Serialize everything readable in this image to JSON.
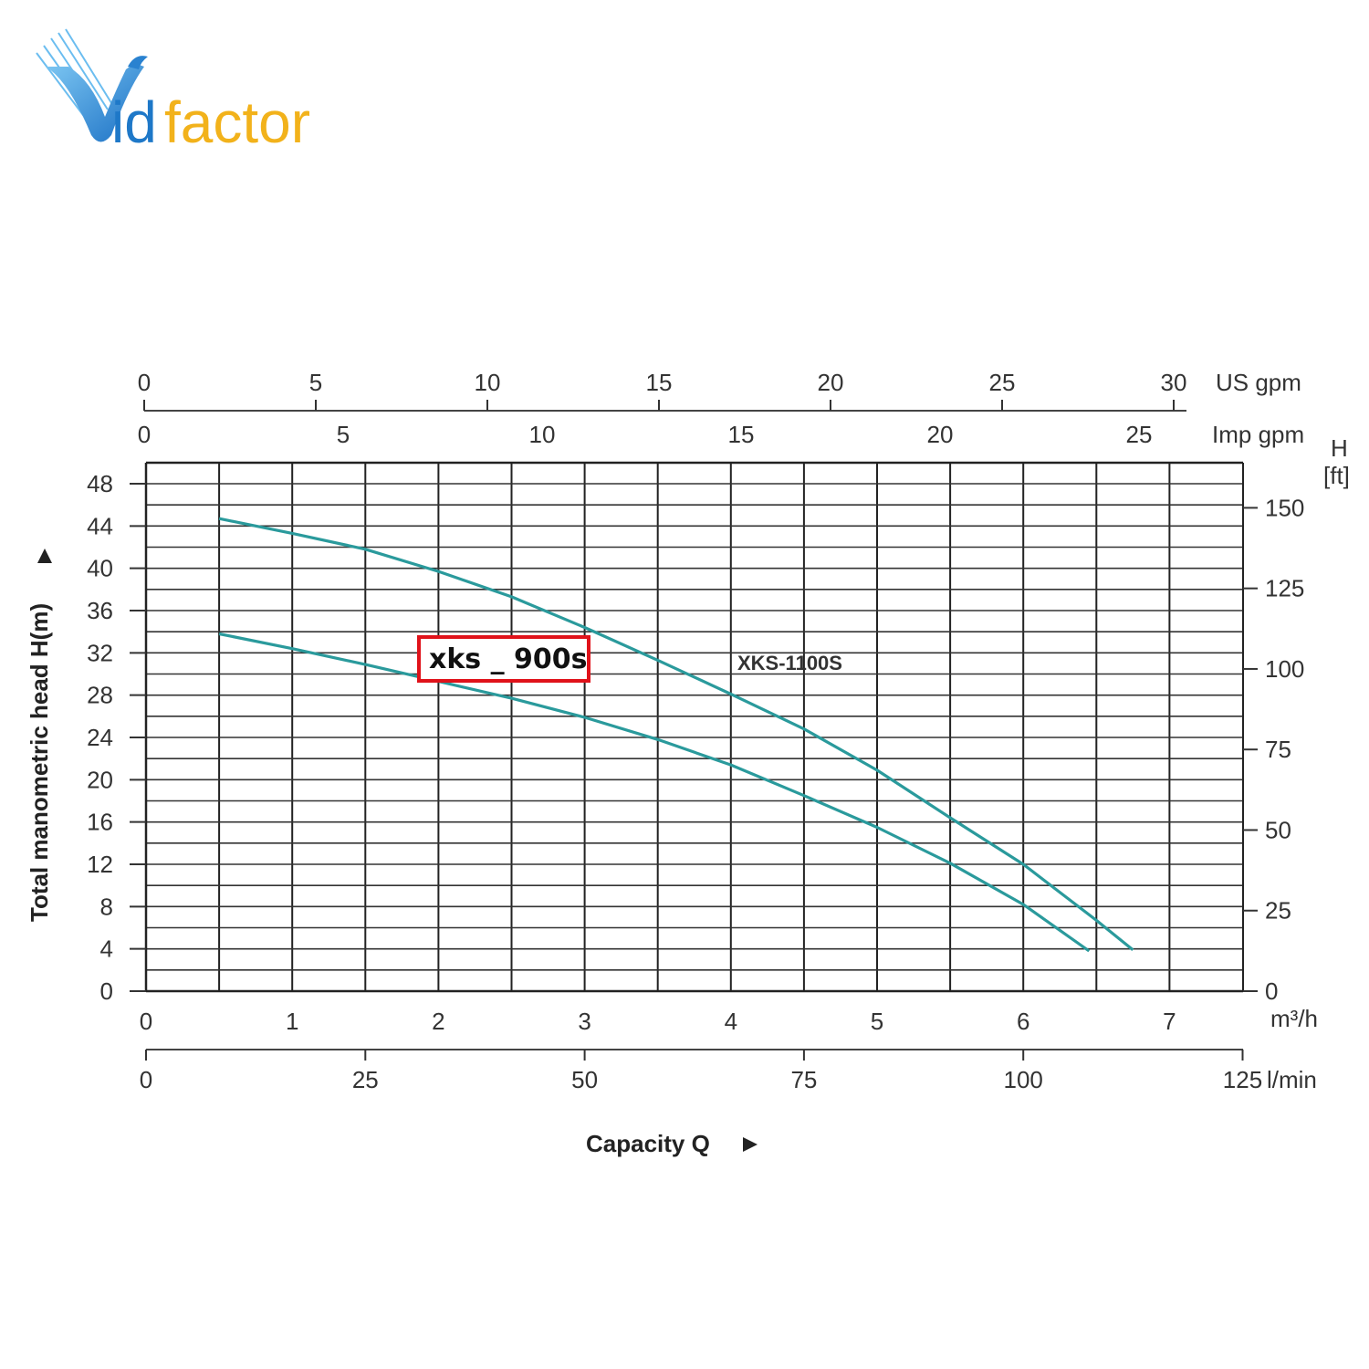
{
  "brand": {
    "logo_text_v": "V",
    "logo_text_id": "id",
    "logo_text_factor": "factor",
    "blue": "#1e78c8",
    "yellow": "#f2b21b"
  },
  "chart_data": {
    "type": "line",
    "x_unit_main": "m³/h",
    "x_ticks_main": [
      "0",
      "1",
      "2",
      "3",
      "4",
      "5",
      "6",
      "7"
    ],
    "xlim": [
      0,
      7.5
    ],
    "x_secondary_lmin": {
      "unit": "l/min",
      "ticks": [
        "0",
        "25",
        "50",
        "75",
        "100",
        "125"
      ]
    },
    "x_secondary_usgpm": {
      "unit": "US gpm",
      "ticks": [
        "0",
        "5",
        "10",
        "15",
        "20",
        "25",
        "30"
      ]
    },
    "x_secondary_impgpm": {
      "unit": "Imp gpm",
      "ticks": [
        "0",
        "5",
        "10",
        "15",
        "20",
        "25"
      ]
    },
    "y_ticks_left": [
      "0",
      "4",
      "8",
      "12",
      "16",
      "20",
      "24",
      "28",
      "32",
      "36",
      "40",
      "44",
      "48"
    ],
    "ylim": [
      0,
      50
    ],
    "y_unit_right": "H [ft]",
    "y_unit_right_line1": "H",
    "y_unit_right_line2": "[ft]",
    "y_ticks_right": [
      "0",
      "25",
      "50",
      "75",
      "100",
      "125",
      "150"
    ],
    "ylabel": "Total manometric head H(m)",
    "xlabel": "Capacity Q",
    "series": [
      {
        "name": "XKS-1100S",
        "color": "#2a9a9c",
        "x": [
          0.5,
          1.0,
          1.5,
          2.0,
          2.5,
          3.0,
          3.5,
          4.0,
          4.5,
          5.0,
          5.5,
          6.0,
          6.5,
          6.75
        ],
        "y": [
          44.7,
          43.3,
          41.8,
          39.7,
          37.3,
          34.4,
          31.3,
          28.1,
          24.8,
          20.9,
          16.4,
          12.0,
          6.7,
          3.9
        ]
      },
      {
        "name": "xks _ 900s",
        "color": "#2a9a9c",
        "x": [
          0.5,
          1.0,
          1.5,
          2.0,
          2.5,
          3.0,
          3.5,
          4.0,
          4.5,
          5.0,
          5.5,
          6.0,
          6.45
        ],
        "y": [
          33.8,
          32.4,
          30.9,
          29.3,
          27.7,
          25.9,
          23.8,
          21.4,
          18.5,
          15.5,
          12.1,
          8.2,
          3.8
        ]
      }
    ],
    "labels": {
      "xks1100": "XKS-1100S",
      "xks900": "xks _ 900s"
    },
    "highlight_color": "#e0121a",
    "grid": true
  }
}
